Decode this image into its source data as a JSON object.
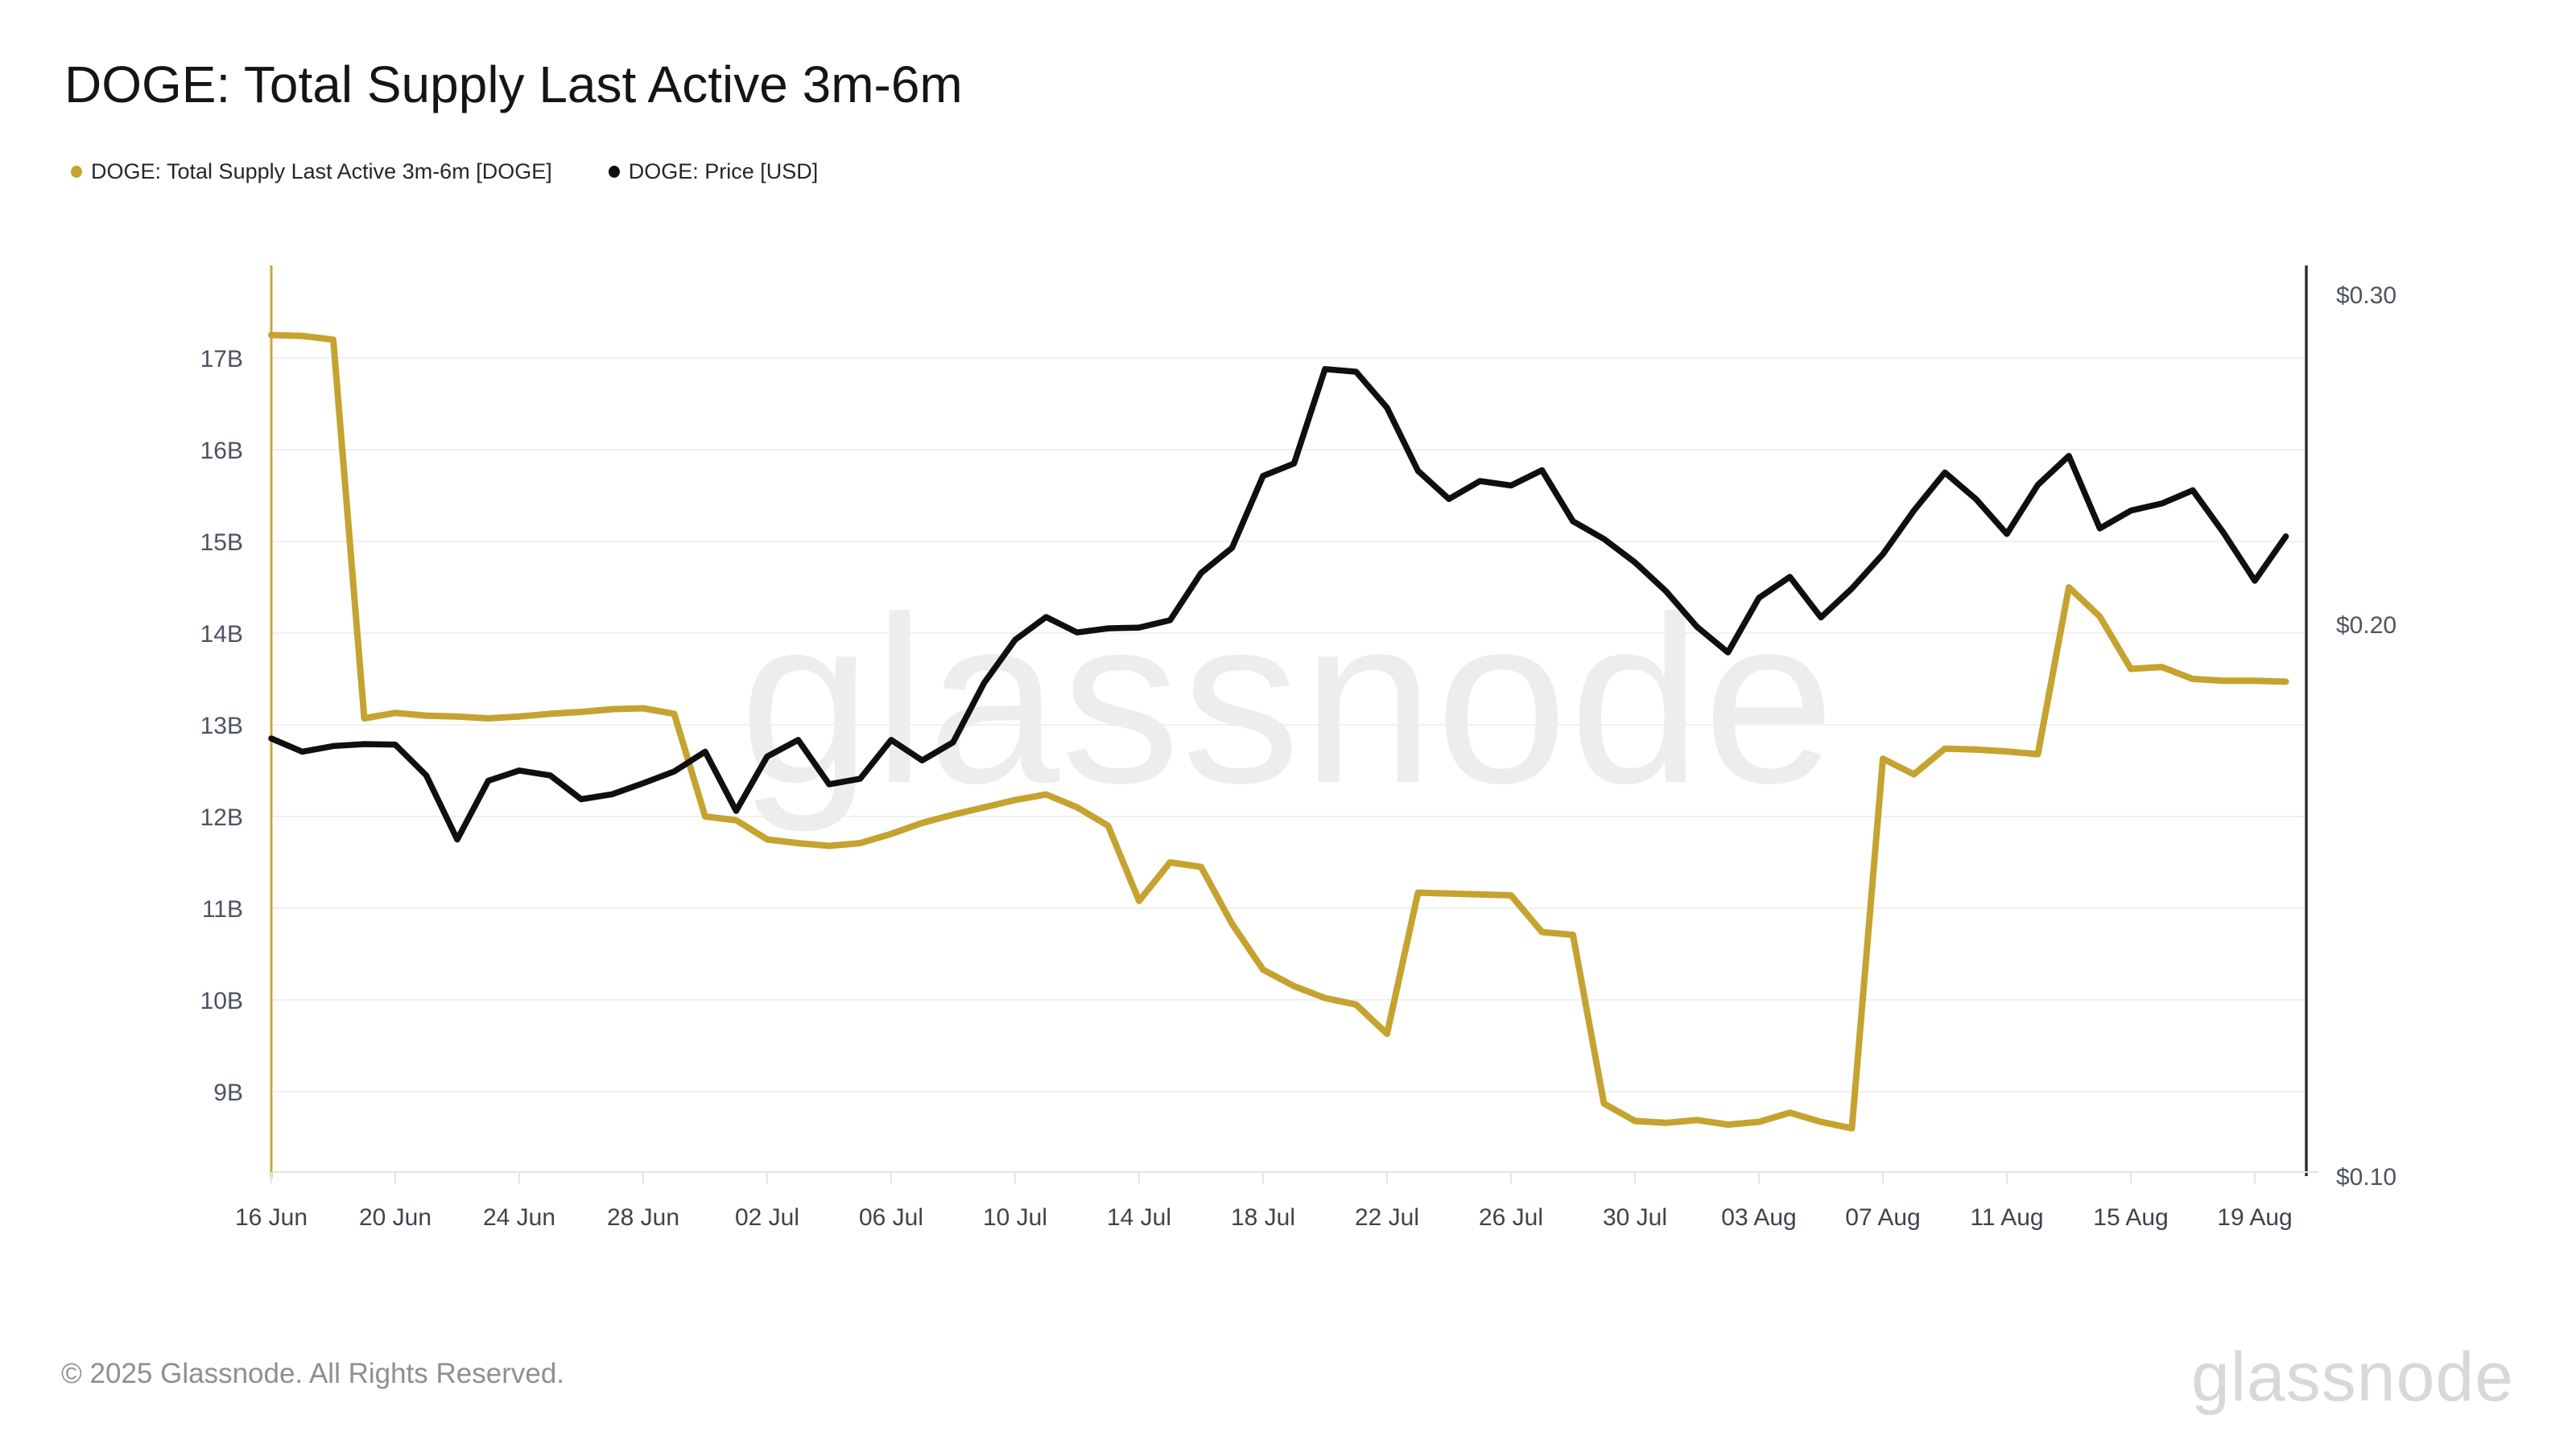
{
  "header": {
    "title": "DOGE: Total Supply Last Active 3m-6m"
  },
  "legend": [
    {
      "label": "DOGE: Total Supply Last Active 3m-6m [DOGE]",
      "color": "#c6a22f"
    },
    {
      "label": "DOGE: Price [USD]",
      "color": "#0f0f0f"
    }
  ],
  "watermark": "glassnode",
  "footer": {
    "copyright": "© 2025 Glassnode. All Rights Reserved.",
    "brand": "glassnode"
  },
  "colors": {
    "supply_line": "#c6a22f",
    "price_line": "#0f0f0f",
    "left_axis_spine": "#c9a63c",
    "right_axis_spine": "#2c2f33",
    "gridline": "#f0f0f0",
    "bottom_axis": "#e4e4e4",
    "axis_label": "#4d5360",
    "x_label": "#3e444d",
    "watermark": "#ededed"
  },
  "chart_data": {
    "type": "line",
    "title": "DOGE: Total Supply Last Active 3m-6m",
    "x": [
      "16 Jun",
      "17 Jun",
      "18 Jun",
      "19 Jun",
      "20 Jun",
      "21 Jun",
      "22 Jun",
      "23 Jun",
      "24 Jun",
      "25 Jun",
      "26 Jun",
      "27 Jun",
      "28 Jun",
      "29 Jun",
      "30 Jun",
      "01 Jul",
      "02 Jul",
      "03 Jul",
      "04 Jul",
      "05 Jul",
      "06 Jul",
      "07 Jul",
      "08 Jul",
      "09 Jul",
      "10 Jul",
      "11 Jul",
      "12 Jul",
      "13 Jul",
      "14 Jul",
      "15 Jul",
      "16 Jul",
      "17 Jul",
      "18 Jul",
      "19 Jul",
      "20 Jul",
      "21 Jul",
      "22 Jul",
      "23 Jul",
      "24 Jul",
      "25 Jul",
      "26 Jul",
      "27 Jul",
      "28 Jul",
      "29 Jul",
      "30 Jul",
      "31 Jul",
      "01 Aug",
      "02 Aug",
      "03 Aug",
      "04 Aug",
      "05 Aug",
      "06 Aug",
      "07 Aug",
      "08 Aug",
      "09 Aug",
      "10 Aug",
      "11 Aug",
      "12 Aug",
      "13 Aug",
      "14 Aug",
      "15 Aug",
      "16 Aug",
      "17 Aug",
      "18 Aug",
      "19 Aug",
      "20 Aug"
    ],
    "x_tick_labels": [
      "16 Jun",
      "20 Jun",
      "24 Jun",
      "28 Jun",
      "02 Jul",
      "06 Jul",
      "10 Jul",
      "14 Jul",
      "18 Jul",
      "22 Jul",
      "26 Jul",
      "30 Jul",
      "03 Aug",
      "07 Aug",
      "11 Aug",
      "15 Aug",
      "19 Aug"
    ],
    "x_tick_every": 4,
    "series": [
      {
        "name": "DOGE: Total Supply Last Active 3m-6m [DOGE]",
        "axis": "left",
        "unit": "B DOGE",
        "color": "#c6a22f",
        "values": [
          17.25,
          17.24,
          17.2,
          13.07,
          13.13,
          13.1,
          13.09,
          13.07,
          13.09,
          13.12,
          13.14,
          13.17,
          13.18,
          13.12,
          12.0,
          11.96,
          11.75,
          11.71,
          11.68,
          11.71,
          11.81,
          11.93,
          12.02,
          12.1,
          12.18,
          12.24,
          12.1,
          11.9,
          11.08,
          11.5,
          11.45,
          10.83,
          10.33,
          10.15,
          10.02,
          9.95,
          9.63,
          11.17,
          11.16,
          11.15,
          11.14,
          10.74,
          10.71,
          8.87,
          8.68,
          8.66,
          8.69,
          8.64,
          8.67,
          8.77,
          8.67,
          8.6,
          12.63,
          12.46,
          12.74,
          12.73,
          12.71,
          12.68,
          14.5,
          14.18,
          13.61,
          13.63,
          13.5,
          13.48,
          13.48,
          13.47
        ]
      },
      {
        "name": "DOGE: Price [USD]",
        "axis": "right",
        "unit": "USD",
        "color": "#0f0f0f",
        "values": [
          0.1738,
          0.171,
          0.1722,
          0.1726,
          0.1725,
          0.1661,
          0.1535,
          0.165,
          0.1671,
          0.1661,
          0.1613,
          0.1623,
          0.1645,
          0.1669,
          0.171,
          0.159,
          0.17,
          0.1735,
          0.1643,
          0.1654,
          0.1735,
          0.1692,
          0.173,
          0.1861,
          0.1962,
          0.2018,
          0.198,
          0.199,
          0.1992,
          0.201,
          0.213,
          0.2197,
          0.24,
          0.2437,
          0.2737,
          0.2728,
          0.261,
          0.2415,
          0.2333,
          0.2385,
          0.2372,
          0.2417,
          0.227,
          0.2221,
          0.2158,
          0.2083,
          0.1994,
          0.1932,
          0.2066,
          0.212,
          0.2017,
          0.209,
          0.218,
          0.23,
          0.241,
          0.2333,
          0.2235,
          0.2374,
          0.246,
          0.225,
          0.23,
          0.232,
          0.2358,
          0.2237,
          0.211,
          0.2228
        ]
      }
    ],
    "y_left": {
      "ticks": [
        {
          "label": "17B",
          "value": 17
        },
        {
          "label": "16B",
          "value": 16
        },
        {
          "label": "15B",
          "value": 15
        },
        {
          "label": "14B",
          "value": 14
        },
        {
          "label": "13B",
          "value": 13
        },
        {
          "label": "12B",
          "value": 12
        },
        {
          "label": "11B",
          "value": 11
        },
        {
          "label": "10B",
          "value": 10
        },
        {
          "label": "9B",
          "value": 9
        }
      ],
      "range": [
        8.1,
        18.0
      ],
      "scale": "linear"
    },
    "y_right": {
      "ticks": [
        {
          "label": "$0.30",
          "value": 0.3
        },
        {
          "label": "$0.20",
          "value": 0.2
        },
        {
          "label": "$0.10",
          "value": 0.1
        }
      ],
      "range": [
        0.102,
        0.303
      ],
      "scale": "log"
    },
    "grid": "horizontal",
    "legend_position": "top-left"
  }
}
